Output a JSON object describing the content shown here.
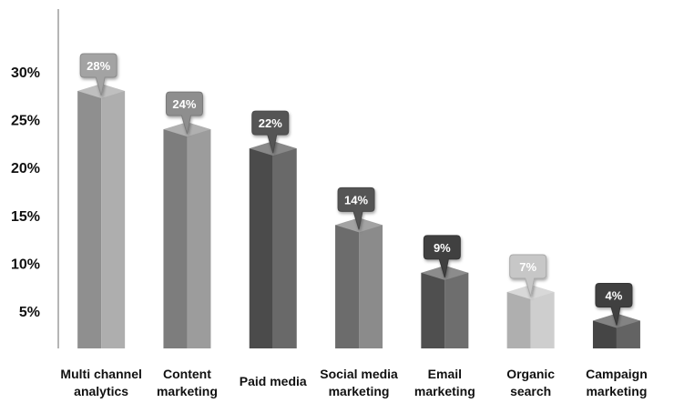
{
  "chart_data": {
    "type": "bar",
    "style": "3d-columns-with-callouts",
    "categories": [
      [
        "Multi channel",
        "analytics"
      ],
      [
        "Content",
        "marketing"
      ],
      [
        "Paid media"
      ],
      [
        "Social media",
        "marketing"
      ],
      [
        "Email",
        "marketing"
      ],
      [
        "Organic",
        "search"
      ],
      [
        "Campaign",
        "marketing"
      ]
    ],
    "values": [
      28,
      24,
      22,
      14,
      9,
      7,
      4
    ],
    "data_labels": [
      "28%",
      "24%",
      "22%",
      "14%",
      "9%",
      "7%",
      "4%"
    ],
    "y_ticks": [
      {
        "value": 5,
        "label": "5%"
      },
      {
        "value": 10,
        "label": "10%"
      },
      {
        "value": 15,
        "label": "15%"
      },
      {
        "value": 20,
        "label": "20%"
      },
      {
        "value": 25,
        "label": "25%"
      },
      {
        "value": 30,
        "label": "30%"
      }
    ],
    "ylim": [
      0,
      34
    ],
    "grid": false,
    "legend": "none",
    "title": "",
    "xlabel": "",
    "ylabel": "",
    "colors": {
      "bars": [
        "#a3a3a3",
        "#8e8e8e",
        "#555555",
        "#7b7b7b",
        "#5a5a5a",
        "#c7c7c7",
        "#4e4e4e"
      ],
      "callouts": [
        "#a3a3a3",
        "#8e8e8e",
        "#555555",
        "#555555",
        "#3f3f3f",
        "#c7c7c7",
        "#3f3f3f"
      ],
      "callout_text": "#ffffff",
      "axis": "#b5b5b5"
    }
  }
}
